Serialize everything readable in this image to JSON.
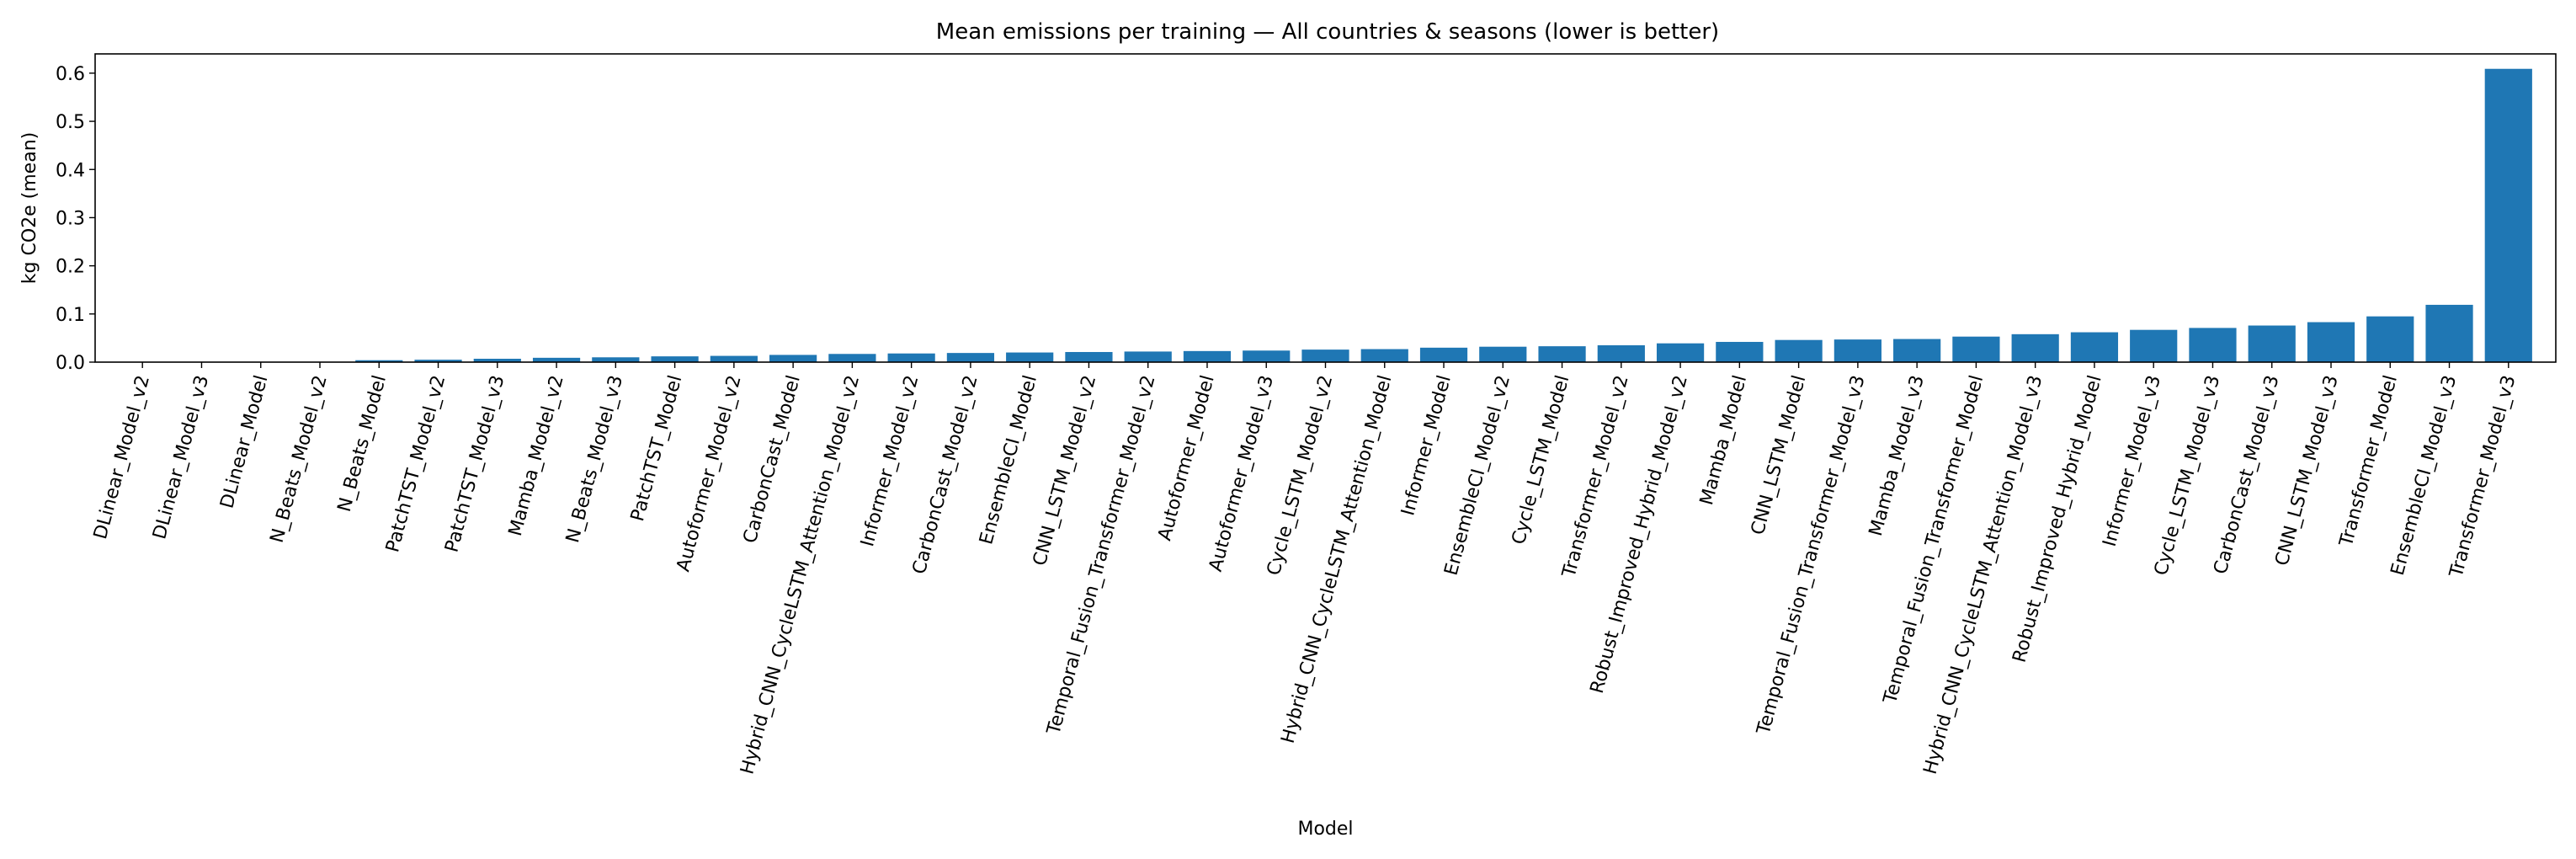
{
  "chart_data": {
    "type": "bar",
    "title": "Mean emissions per training — All countries & seasons (lower is better)",
    "xlabel": "Model",
    "ylabel": "kg CO2e (mean)",
    "ylim": [
      0,
      0.64
    ],
    "yticks": [
      "0.0",
      "0.1",
      "0.2",
      "0.3",
      "0.4",
      "0.5",
      "0.6"
    ],
    "grid": false,
    "bar_color": "#1f77b4",
    "categories": [
      "DLinear_Model_v2",
      "DLinear_Model_v3",
      "DLinear_Model",
      "N_Beats_Model_v2",
      "N_Beats_Model",
      "PatchTST_Model_v2",
      "PatchTST_Model_v3",
      "Mamba_Model_v2",
      "N_Beats_Model_v3",
      "PatchTST_Model",
      "Autoformer_Model_v2",
      "CarbonCast_Model",
      "Hybrid_CNN_CycleLSTM_Attention_Model_v2",
      "Informer_Model_v2",
      "CarbonCast_Model_v2",
      "EnsembleCI_Model",
      "CNN_LSTM_Model_v2",
      "Temporal_Fusion_Transformer_Model_v2",
      "Autoformer_Model",
      "Autoformer_Model_v3",
      "Cycle_LSTM_Model_v2",
      "Hybrid_CNN_CycleLSTM_Attention_Model",
      "Informer_Model",
      "EnsembleCI_Model_v2",
      "Cycle_LSTM_Model",
      "Transformer_Model_v2",
      "Robust_Improved_Hybrid_Model_v2",
      "Mamba_Model",
      "CNN_LSTM_Model",
      "Temporal_Fusion_Transformer_Model_v3",
      "Mamba_Model_v3",
      "Temporal_Fusion_Transformer_Model",
      "Hybrid_CNN_CycleLSTM_Attention_Model_v3",
      "Robust_Improved_Hybrid_Model",
      "Informer_Model_v3",
      "Cycle_LSTM_Model_v3",
      "CarbonCast_Model_v3",
      "CNN_LSTM_Model_v3",
      "Transformer_Model",
      "EnsembleCI_Model_v3",
      "Transformer_Model_v3"
    ],
    "values": [
      0.0003,
      0.0003,
      0.0004,
      0.0008,
      0.004,
      0.005,
      0.007,
      0.009,
      0.01,
      0.012,
      0.013,
      0.015,
      0.017,
      0.018,
      0.019,
      0.02,
      0.021,
      0.022,
      0.023,
      0.024,
      0.026,
      0.027,
      0.03,
      0.032,
      0.033,
      0.035,
      0.039,
      0.042,
      0.046,
      0.047,
      0.048,
      0.053,
      0.058,
      0.062,
      0.067,
      0.071,
      0.076,
      0.083,
      0.095,
      0.119,
      0.609
    ]
  }
}
